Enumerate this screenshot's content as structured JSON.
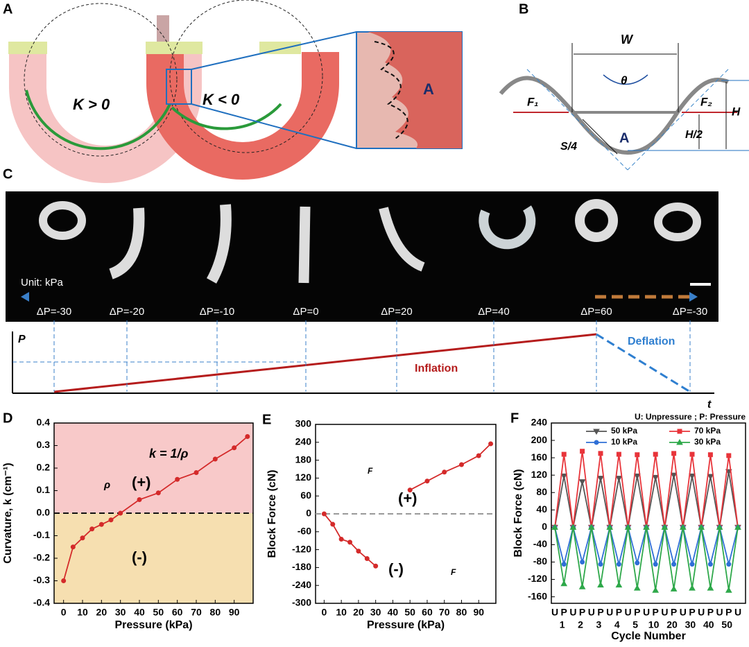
{
  "panels": {
    "A": {
      "label": "A",
      "texts": [
        "K > 0",
        "K < 0",
        "A"
      ]
    },
    "B": {
      "label": "B",
      "texts": [
        "W",
        "θ",
        "F₁",
        "F₂",
        "H",
        "H/2",
        "S/4",
        "A"
      ]
    },
    "C": {
      "label": "C",
      "unit": "Unit: kPa",
      "pressure_labels": [
        "ΔP=-30",
        "ΔP=-20",
        "ΔP=-10",
        "ΔP=0",
        "ΔP=20",
        "ΔP=40",
        "ΔP=60",
        "ΔP=-30"
      ],
      "p_axis": "P",
      "t_axis": "t",
      "inflation": "Inflation",
      "deflation": "Deflation"
    }
  },
  "chart_data": [
    {
      "type": "line",
      "panel": "D",
      "ylabel": "Curvature, k (cm⁻¹)",
      "xlabel": "Pressure (kPa)",
      "x": [
        0,
        5,
        10,
        15,
        20,
        25,
        30,
        40,
        50,
        60,
        70,
        80,
        90,
        97
      ],
      "series": [
        {
          "color": "#d42a2a",
          "marker": "circle",
          "values": [
            -0.3,
            -0.15,
            -0.11,
            -0.07,
            -0.05,
            -0.03,
            0.0,
            0.06,
            0.09,
            0.15,
            0.18,
            0.24,
            0.29,
            0.34
          ]
        }
      ],
      "xlim": [
        -5,
        100
      ],
      "xticks": [
        0,
        10,
        20,
        30,
        40,
        50,
        60,
        70,
        80,
        90
      ],
      "ylim": [
        -0.4,
        0.4
      ],
      "yticks": [
        -0.4,
        -0.3,
        -0.2,
        -0.1,
        {
          "value": 0,
          "label": "0.0"
        },
        0.1,
        0.2,
        0.3,
        0.4
      ],
      "reference_line": 0,
      "region_colors": [
        "#f8c9c9",
        "#f6dfb0"
      ],
      "annotations": [
        "k = 1/ρ",
        "ρ",
        "(+)",
        "(-)"
      ]
    },
    {
      "type": "line",
      "panel": "E",
      "ylabel": "Block Force (cN)",
      "xlabel": "Pressure (kPa)",
      "x": [
        0,
        5,
        10,
        15,
        20,
        25,
        30,
        40,
        50,
        60,
        70,
        80,
        90,
        97
      ],
      "series": [
        {
          "color": "#d42a2a",
          "marker": "circle",
          "values": [
            0,
            -35,
            -85,
            -95,
            -125,
            -150,
            -175,
            null,
            80,
            110,
            140,
            165,
            195,
            235
          ]
        }
      ],
      "xlim": [
        -5,
        100
      ],
      "xticks": [
        0,
        10,
        20,
        30,
        40,
        50,
        60,
        70,
        80,
        90
      ],
      "ylim": [
        -300,
        300
      ],
      "yticks": [
        -300,
        -240,
        -180,
        -120,
        -60,
        0,
        60,
        120,
        180,
        240,
        300
      ],
      "reference_line": 0,
      "annotations": [
        "F",
        "(+)",
        "F",
        "(-)"
      ]
    },
    {
      "type": "line",
      "panel": "F",
      "ylabel": "Block Force (cN)",
      "xlabel": "Cycle Number",
      "legend_title": "U: Unpressure ;   P: Pressure",
      "categories": [
        "U",
        "P",
        "U",
        "P",
        "U",
        "P",
        "U",
        "P",
        "U",
        "P",
        "U",
        "P",
        "U",
        "P",
        "U",
        "P",
        "U",
        "P",
        "U",
        "P",
        "U"
      ],
      "cycle_labels": [
        "1",
        "2",
        "3",
        "4",
        "5",
        "10",
        "20",
        "30",
        "40",
        "50"
      ],
      "series": [
        {
          "name": "50 kPa",
          "color": "#555555",
          "marker": "tri-down",
          "values": [
            0,
            118,
            0,
            105,
            0,
            113,
            0,
            113,
            0,
            118,
            0,
            115,
            0,
            120,
            0,
            118,
            0,
            117,
            0,
            128,
            0
          ]
        },
        {
          "name": "70 kPa",
          "color": "#e8343a",
          "marker": "square",
          "values": [
            0,
            168,
            0,
            175,
            0,
            170,
            0,
            168,
            0,
            167,
            0,
            168,
            0,
            170,
            0,
            168,
            0,
            167,
            0,
            165,
            0
          ]
        },
        {
          "name": "10 kPa",
          "color": "#2f6fd6",
          "marker": "circle",
          "values": [
            0,
            -85,
            0,
            -80,
            0,
            -85,
            0,
            -85,
            0,
            -82,
            0,
            -85,
            0,
            -85,
            0,
            -85,
            0,
            -85,
            0,
            -85,
            0
          ]
        },
        {
          "name": "30 kPa",
          "color": "#2ea84a",
          "marker": "tri-up",
          "values": [
            0,
            -130,
            0,
            -137,
            0,
            -133,
            0,
            -133,
            0,
            -140,
            0,
            -145,
            0,
            -142,
            0,
            -140,
            0,
            -140,
            0,
            -145,
            0
          ]
        }
      ],
      "ylim": [
        -175,
        240
      ],
      "yticks": [
        -160,
        -120,
        -80,
        -40,
        0,
        40,
        80,
        120,
        160,
        200,
        240
      ]
    }
  ]
}
